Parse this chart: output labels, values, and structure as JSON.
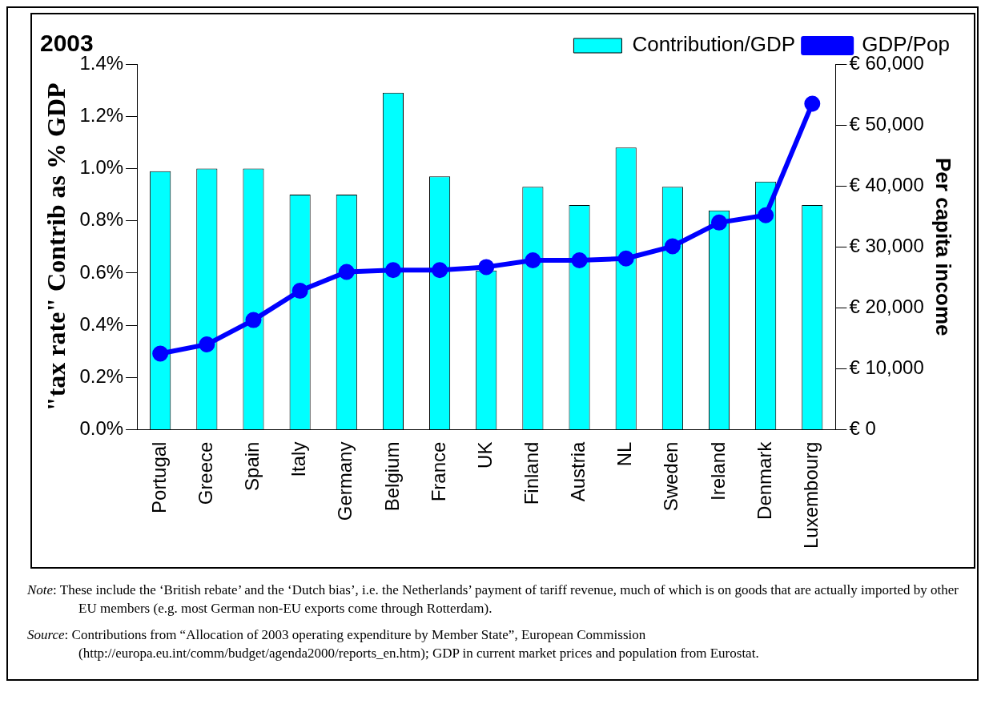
{
  "chart_data": {
    "type": "bar",
    "title": "2003",
    "ylabel": "\"tax rate\" Contrib as % GDP",
    "y2label": "Per capita income",
    "categories": [
      "Portugal",
      "Greece",
      "Spain",
      "Italy",
      "Germany",
      "Belgium",
      "France",
      "UK",
      "Finland",
      "Austria",
      "NL",
      "Sweden",
      "Ireland",
      "Denmark",
      "Luxembourg"
    ],
    "series": [
      {
        "name": "Contribution/GDP",
        "color": "#00ffff",
        "values": [
          0.99,
          1.0,
          1.0,
          0.9,
          0.9,
          1.29,
          0.97,
          0.61,
          0.93,
          0.86,
          1.08,
          0.93,
          0.84,
          0.95,
          0.86
        ]
      },
      {
        "name": "GDP/Pop",
        "type": "line",
        "axis": "y2",
        "color": "#0000ff",
        "values": [
          12500,
          14000,
          18000,
          22800,
          25900,
          26200,
          26200,
          26700,
          27800,
          27800,
          28100,
          30100,
          34000,
          35200,
          53500
        ]
      }
    ],
    "ylim": [
      0,
      1.4
    ],
    "yticks": [
      {
        "value": 0,
        "label": "0.0%"
      },
      {
        "value": 0.2,
        "label": "0.2%"
      },
      {
        "value": 0.4,
        "label": "0.4%"
      },
      {
        "value": 0.6,
        "label": "0.6%"
      },
      {
        "value": 0.8,
        "label": "0.8%"
      },
      {
        "value": 1.0,
        "label": "1.0%"
      },
      {
        "value": 1.2,
        "label": "1.2%"
      },
      {
        "value": 1.4,
        "label": "1.4%"
      }
    ],
    "y2lim": [
      0,
      60000
    ],
    "y2ticks": [
      {
        "value": 0,
        "label": "€ 0"
      },
      {
        "value": 10000,
        "label": "€ 10,000"
      },
      {
        "value": 20000,
        "label": "€ 20,000"
      },
      {
        "value": 30000,
        "label": "€ 30,000"
      },
      {
        "value": 40000,
        "label": "€ 40,000"
      },
      {
        "value": 50000,
        "label": "€ 50,000"
      },
      {
        "value": 60000,
        "label": "€ 60,000"
      }
    ],
    "grid": false,
    "legend": "top right",
    "marker": "circle",
    "line_style": "solid",
    "annotations": [
      "Note: These include the ‘British rebate’ and the ‘Dutch bias’, i.e. the Netherlands’ payment of tariff revenue, much of which is on goods that are actually imported by other EU members (e.g. most German non-EU exports come through Rotterdam).",
      "Source: Contributions from “Allocation of 2003 operating expenditure by Member State”, European Commission (http://europa.eu.int/comm/budget/agenda2000/reports_en.htm); GDP in current market prices and population from Eurostat."
    ]
  }
}
